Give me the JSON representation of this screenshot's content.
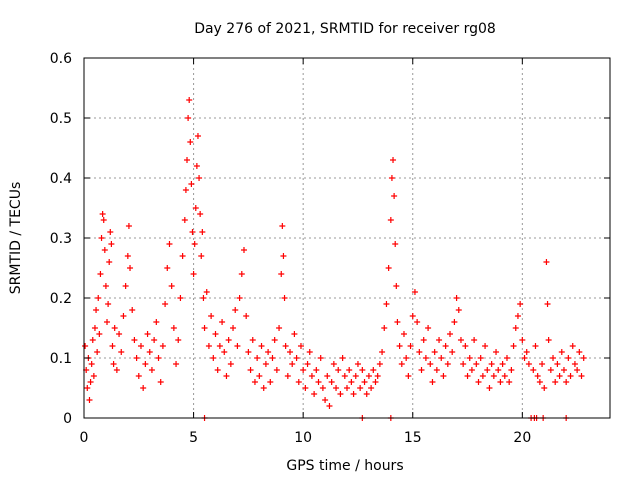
{
  "chart_data": {
    "type": "scatter",
    "title": "Day 276 of 2021, SRMTID for receiver rg08",
    "xlabel": "GPS time / hours",
    "ylabel": "SRMTID / TECUs",
    "xlim": [
      0,
      24
    ],
    "ylim": [
      0,
      0.6
    ],
    "x_ticks": [
      0,
      5,
      10,
      15,
      20
    ],
    "x_tick_labels": [
      "0",
      "5",
      "10",
      "15",
      "20"
    ],
    "y_ticks": [
      0,
      0.1,
      0.2,
      0.3,
      0.4,
      0.5,
      0.6
    ],
    "y_tick_labels": [
      "0",
      "0.1",
      "0.2",
      "0.3",
      "0.4",
      "0.5",
      "0.6"
    ],
    "grid": true,
    "marker": "plus",
    "color": "#ff0000",
    "series": [
      {
        "name": "SRMTID",
        "points": [
          [
            0.05,
            0.12
          ],
          [
            0.1,
            0.08
          ],
          [
            0.15,
            0.05
          ],
          [
            0.2,
            0.1
          ],
          [
            0.25,
            0.03
          ],
          [
            0.3,
            0.06
          ],
          [
            0.35,
            0.09
          ],
          [
            0.4,
            0.13
          ],
          [
            0.45,
            0.07
          ],
          [
            0.5,
            0.15
          ],
          [
            0.55,
            0.18
          ],
          [
            0.6,
            0.11
          ],
          [
            0.65,
            0.2
          ],
          [
            0.7,
            0.14
          ],
          [
            0.75,
            0.24
          ],
          [
            0.8,
            0.3
          ],
          [
            0.85,
            0.34
          ],
          [
            0.9,
            0.33
          ],
          [
            0.95,
            0.28
          ],
          [
            1.0,
            0.22
          ],
          [
            1.05,
            0.16
          ],
          [
            1.1,
            0.19
          ],
          [
            1.15,
            0.26
          ],
          [
            1.2,
            0.31
          ],
          [
            1.25,
            0.29
          ],
          [
            1.3,
            0.12
          ],
          [
            1.35,
            0.09
          ],
          [
            1.4,
            0.15
          ],
          [
            1.5,
            0.08
          ],
          [
            1.6,
            0.14
          ],
          [
            1.7,
            0.11
          ],
          [
            1.8,
            0.17
          ],
          [
            1.9,
            0.22
          ],
          [
            2.0,
            0.27
          ],
          [
            2.05,
            0.32
          ],
          [
            2.1,
            0.25
          ],
          [
            2.2,
            0.18
          ],
          [
            2.3,
            0.13
          ],
          [
            2.4,
            0.1
          ],
          [
            2.5,
            0.07
          ],
          [
            2.6,
            0.12
          ],
          [
            2.7,
            0.05
          ],
          [
            2.8,
            0.09
          ],
          [
            2.9,
            0.14
          ],
          [
            3.0,
            0.11
          ],
          [
            3.1,
            0.08
          ],
          [
            3.2,
            0.13
          ],
          [
            3.3,
            0.16
          ],
          [
            3.4,
            0.1
          ],
          [
            3.5,
            0.06
          ],
          [
            3.6,
            0.12
          ],
          [
            3.7,
            0.19
          ],
          [
            3.8,
            0.25
          ],
          [
            3.9,
            0.29
          ],
          [
            4.0,
            0.22
          ],
          [
            4.1,
            0.15
          ],
          [
            4.2,
            0.09
          ],
          [
            4.3,
            0.13
          ],
          [
            4.4,
            0.2
          ],
          [
            4.5,
            0.27
          ],
          [
            4.6,
            0.33
          ],
          [
            4.65,
            0.38
          ],
          [
            4.7,
            0.43
          ],
          [
            4.75,
            0.5
          ],
          [
            4.8,
            0.53
          ],
          [
            4.85,
            0.46
          ],
          [
            4.9,
            0.39
          ],
          [
            4.95,
            0.31
          ],
          [
            5.0,
            0.24
          ],
          [
            5.05,
            0.29
          ],
          [
            5.1,
            0.35
          ],
          [
            5.15,
            0.42
          ],
          [
            5.2,
            0.47
          ],
          [
            5.25,
            0.4
          ],
          [
            5.3,
            0.34
          ],
          [
            5.35,
            0.27
          ],
          [
            5.4,
            0.31
          ],
          [
            5.45,
            0.2
          ],
          [
            5.5,
            0.15
          ],
          [
            5.6,
            0.21
          ],
          [
            5.7,
            0.12
          ],
          [
            5.8,
            0.17
          ],
          [
            5.9,
            0.1
          ],
          [
            6.0,
            0.14
          ],
          [
            6.1,
            0.08
          ],
          [
            6.2,
            0.12
          ],
          [
            6.3,
            0.16
          ],
          [
            6.4,
            0.11
          ],
          [
            6.5,
            0.07
          ],
          [
            6.6,
            0.13
          ],
          [
            6.7,
            0.09
          ],
          [
            6.8,
            0.15
          ],
          [
            6.9,
            0.18
          ],
          [
            7.0,
            0.12
          ],
          [
            7.1,
            0.2
          ],
          [
            7.2,
            0.24
          ],
          [
            7.3,
            0.28
          ],
          [
            7.4,
            0.17
          ],
          [
            7.5,
            0.11
          ],
          [
            7.6,
            0.08
          ],
          [
            7.7,
            0.13
          ],
          [
            7.8,
            0.06
          ],
          [
            7.9,
            0.1
          ],
          [
            8.0,
            0.07
          ],
          [
            8.1,
            0.12
          ],
          [
            8.2,
            0.05
          ],
          [
            8.3,
            0.09
          ],
          [
            8.4,
            0.11
          ],
          [
            8.5,
            0.06
          ],
          [
            8.6,
            0.1
          ],
          [
            8.7,
            0.13
          ],
          [
            8.8,
            0.08
          ],
          [
            8.9,
            0.15
          ],
          [
            9.0,
            0.24
          ],
          [
            9.05,
            0.32
          ],
          [
            9.1,
            0.27
          ],
          [
            9.15,
            0.2
          ],
          [
            9.2,
            0.12
          ],
          [
            9.3,
            0.07
          ],
          [
            9.4,
            0.11
          ],
          [
            9.5,
            0.09
          ],
          [
            9.6,
            0.14
          ],
          [
            9.7,
            0.1
          ],
          [
            9.8,
            0.06
          ],
          [
            9.9,
            0.12
          ],
          [
            10.0,
            0.08
          ],
          [
            10.1,
            0.05
          ],
          [
            10.2,
            0.09
          ],
          [
            10.3,
            0.11
          ],
          [
            10.4,
            0.07
          ],
          [
            10.5,
            0.04
          ],
          [
            10.6,
            0.08
          ],
          [
            10.7,
            0.06
          ],
          [
            10.8,
            0.1
          ],
          [
            10.9,
            0.05
          ],
          [
            11.0,
            0.03
          ],
          [
            11.1,
            0.07
          ],
          [
            11.2,
            0.02
          ],
          [
            11.3,
            0.06
          ],
          [
            11.4,
            0.09
          ],
          [
            11.5,
            0.05
          ],
          [
            11.6,
            0.08
          ],
          [
            11.7,
            0.04
          ],
          [
            11.8,
            0.1
          ],
          [
            11.9,
            0.07
          ],
          [
            12.0,
            0.05
          ],
          [
            12.1,
            0.08
          ],
          [
            12.2,
            0.06
          ],
          [
            12.3,
            0.04
          ],
          [
            12.4,
            0.07
          ],
          [
            12.5,
            0.09
          ],
          [
            12.6,
            0.05
          ],
          [
            12.7,
            0.08
          ],
          [
            12.8,
            0.06
          ],
          [
            12.9,
            0.04
          ],
          [
            13.0,
            0.07
          ],
          [
            13.1,
            0.05
          ],
          [
            13.2,
            0.08
          ],
          [
            13.3,
            0.06
          ],
          [
            13.4,
            0.07
          ],
          [
            13.5,
            0.09
          ],
          [
            13.6,
            0.11
          ],
          [
            13.7,
            0.15
          ],
          [
            13.8,
            0.19
          ],
          [
            13.9,
            0.25
          ],
          [
            14.0,
            0.33
          ],
          [
            14.05,
            0.4
          ],
          [
            14.1,
            0.43
          ],
          [
            14.15,
            0.37
          ],
          [
            14.2,
            0.29
          ],
          [
            14.25,
            0.22
          ],
          [
            14.3,
            0.16
          ],
          [
            14.4,
            0.12
          ],
          [
            14.5,
            0.09
          ],
          [
            14.6,
            0.14
          ],
          [
            14.7,
            0.1
          ],
          [
            14.8,
            0.07
          ],
          [
            14.9,
            0.12
          ],
          [
            15.0,
            0.17
          ],
          [
            15.1,
            0.21
          ],
          [
            15.2,
            0.16
          ],
          [
            15.3,
            0.11
          ],
          [
            15.4,
            0.08
          ],
          [
            15.5,
            0.13
          ],
          [
            15.6,
            0.1
          ],
          [
            15.7,
            0.15
          ],
          [
            15.8,
            0.09
          ],
          [
            15.9,
            0.06
          ],
          [
            16.0,
            0.11
          ],
          [
            16.1,
            0.08
          ],
          [
            16.2,
            0.13
          ],
          [
            16.3,
            0.1
          ],
          [
            16.4,
            0.07
          ],
          [
            16.5,
            0.12
          ],
          [
            16.6,
            0.09
          ],
          [
            16.7,
            0.14
          ],
          [
            16.8,
            0.11
          ],
          [
            16.9,
            0.16
          ],
          [
            17.0,
            0.2
          ],
          [
            17.1,
            0.18
          ],
          [
            17.2,
            0.13
          ],
          [
            17.3,
            0.09
          ],
          [
            17.4,
            0.12
          ],
          [
            17.5,
            0.07
          ],
          [
            17.6,
            0.1
          ],
          [
            17.7,
            0.08
          ],
          [
            17.8,
            0.13
          ],
          [
            17.9,
            0.09
          ],
          [
            18.0,
            0.06
          ],
          [
            18.1,
            0.1
          ],
          [
            18.2,
            0.07
          ],
          [
            18.3,
            0.12
          ],
          [
            18.4,
            0.08
          ],
          [
            18.5,
            0.05
          ],
          [
            18.6,
            0.09
          ],
          [
            18.7,
            0.07
          ],
          [
            18.8,
            0.11
          ],
          [
            18.9,
            0.08
          ],
          [
            19.0,
            0.06
          ],
          [
            19.1,
            0.09
          ],
          [
            19.2,
            0.07
          ],
          [
            19.3,
            0.1
          ],
          [
            19.4,
            0.06
          ],
          [
            19.5,
            0.08
          ],
          [
            19.6,
            0.12
          ],
          [
            19.7,
            0.15
          ],
          [
            19.8,
            0.17
          ],
          [
            19.9,
            0.19
          ],
          [
            20.0,
            0.13
          ],
          [
            20.1,
            0.1
          ],
          [
            20.2,
            0.11
          ],
          [
            20.3,
            0.09
          ],
          [
            20.5,
            0.08
          ],
          [
            20.6,
            0.12
          ],
          [
            20.7,
            0.07
          ],
          [
            20.8,
            0.06
          ],
          [
            20.9,
            0.09
          ],
          [
            21.0,
            0.05
          ],
          [
            21.1,
            0.26
          ],
          [
            21.15,
            0.19
          ],
          [
            21.2,
            0.13
          ],
          [
            21.3,
            0.08
          ],
          [
            21.4,
            0.1
          ],
          [
            21.5,
            0.06
          ],
          [
            21.6,
            0.09
          ],
          [
            21.7,
            0.07
          ],
          [
            21.8,
            0.11
          ],
          [
            21.9,
            0.08
          ],
          [
            22.0,
            0.06
          ],
          [
            22.1,
            0.1
          ],
          [
            22.2,
            0.07
          ],
          [
            22.3,
            0.12
          ],
          [
            22.4,
            0.09
          ],
          [
            22.5,
            0.08
          ],
          [
            22.6,
            0.11
          ],
          [
            22.7,
            0.07
          ],
          [
            22.8,
            0.1
          ],
          [
            5.5,
            0
          ],
          [
            12.7,
            0
          ],
          [
            14.0,
            0
          ],
          [
            20.4,
            0
          ],
          [
            20.55,
            0
          ],
          [
            20.65,
            0
          ],
          [
            20.95,
            0
          ],
          [
            22.0,
            0
          ]
        ]
      }
    ]
  }
}
